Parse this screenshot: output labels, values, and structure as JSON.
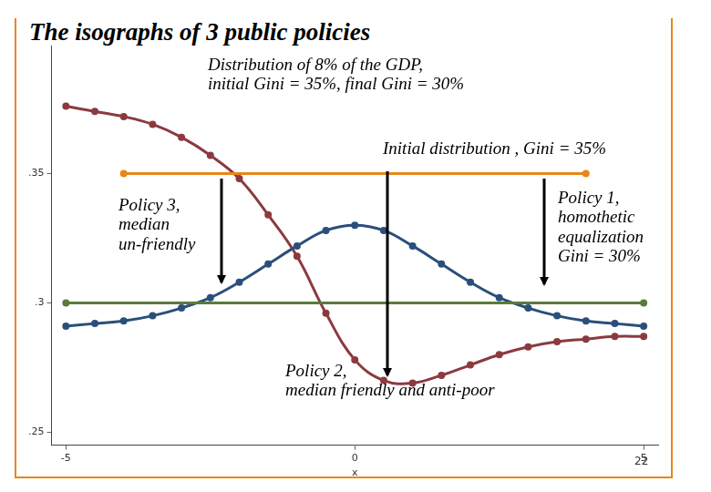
{
  "chart_data": {
    "type": "line",
    "title": "The isographs of 3 public policies",
    "subtitle": "Distribution of 8% of the GDP,\ninitial Gini = 35%, final Gini = 30%",
    "x_label": "x",
    "footer": "22",
    "annotations": [
      "Initial distribution , Gini = 35%",
      "Policy 3,\nmedian\nun-friendly",
      "Policy 1,\nhomothetic\nequalization\nGini = 30%",
      "Policy 2,\nmedian friendly and anti-poor"
    ],
    "xlim": [
      -5.25,
      5.25
    ],
    "xticks": [
      -5,
      0,
      5
    ],
    "ylim": [
      0.245,
      0.41
    ],
    "yticks": [
      {
        "value": 0.25,
        "label": ".25"
      },
      {
        "value": 0.3,
        "label": ".3"
      },
      {
        "value": 0.35,
        "label": ".35"
      }
    ],
    "grid": false,
    "series": [
      {
        "color": "#e8861a",
        "marker": "circle",
        "x": [
          -4,
          4
        ],
        "values": [
          0.35,
          0.35
        ]
      },
      {
        "color": "#5b7b3a",
        "marker": "circle",
        "x": [
          -5,
          5
        ],
        "values": [
          0.3,
          0.3
        ]
      },
      {
        "color": "#2a4f7a",
        "marker": "circle",
        "x": [
          -5,
          -4.5,
          -4,
          -3.5,
          -3,
          -2.5,
          -2,
          -1.5,
          -1,
          -0.5,
          0,
          0.5,
          1,
          1.5,
          2,
          2.5,
          3,
          3.5,
          4,
          4.5,
          5
        ],
        "values": [
          0.291,
          0.292,
          0.293,
          0.295,
          0.298,
          0.302,
          0.308,
          0.315,
          0.322,
          0.328,
          0.33,
          0.328,
          0.322,
          0.315,
          0.308,
          0.302,
          0.298,
          0.295,
          0.293,
          0.292,
          0.291
        ]
      },
      {
        "color": "#8b3a40",
        "marker": "circle",
        "x": [
          -5,
          -4.5,
          -4,
          -3.5,
          -3,
          -2.5,
          -2,
          -1.5,
          -1,
          -0.5,
          0,
          0.5,
          1,
          1.5,
          2,
          2.5,
          3,
          3.5,
          4,
          4.5,
          5
        ],
        "values": [
          0.376,
          0.374,
          0.372,
          0.369,
          0.364,
          0.357,
          0.348,
          0.334,
          0.318,
          0.296,
          0.278,
          0.27,
          0.269,
          0.272,
          0.276,
          0.28,
          0.283,
          0.285,
          0.286,
          0.287,
          0.287
        ]
      }
    ]
  }
}
